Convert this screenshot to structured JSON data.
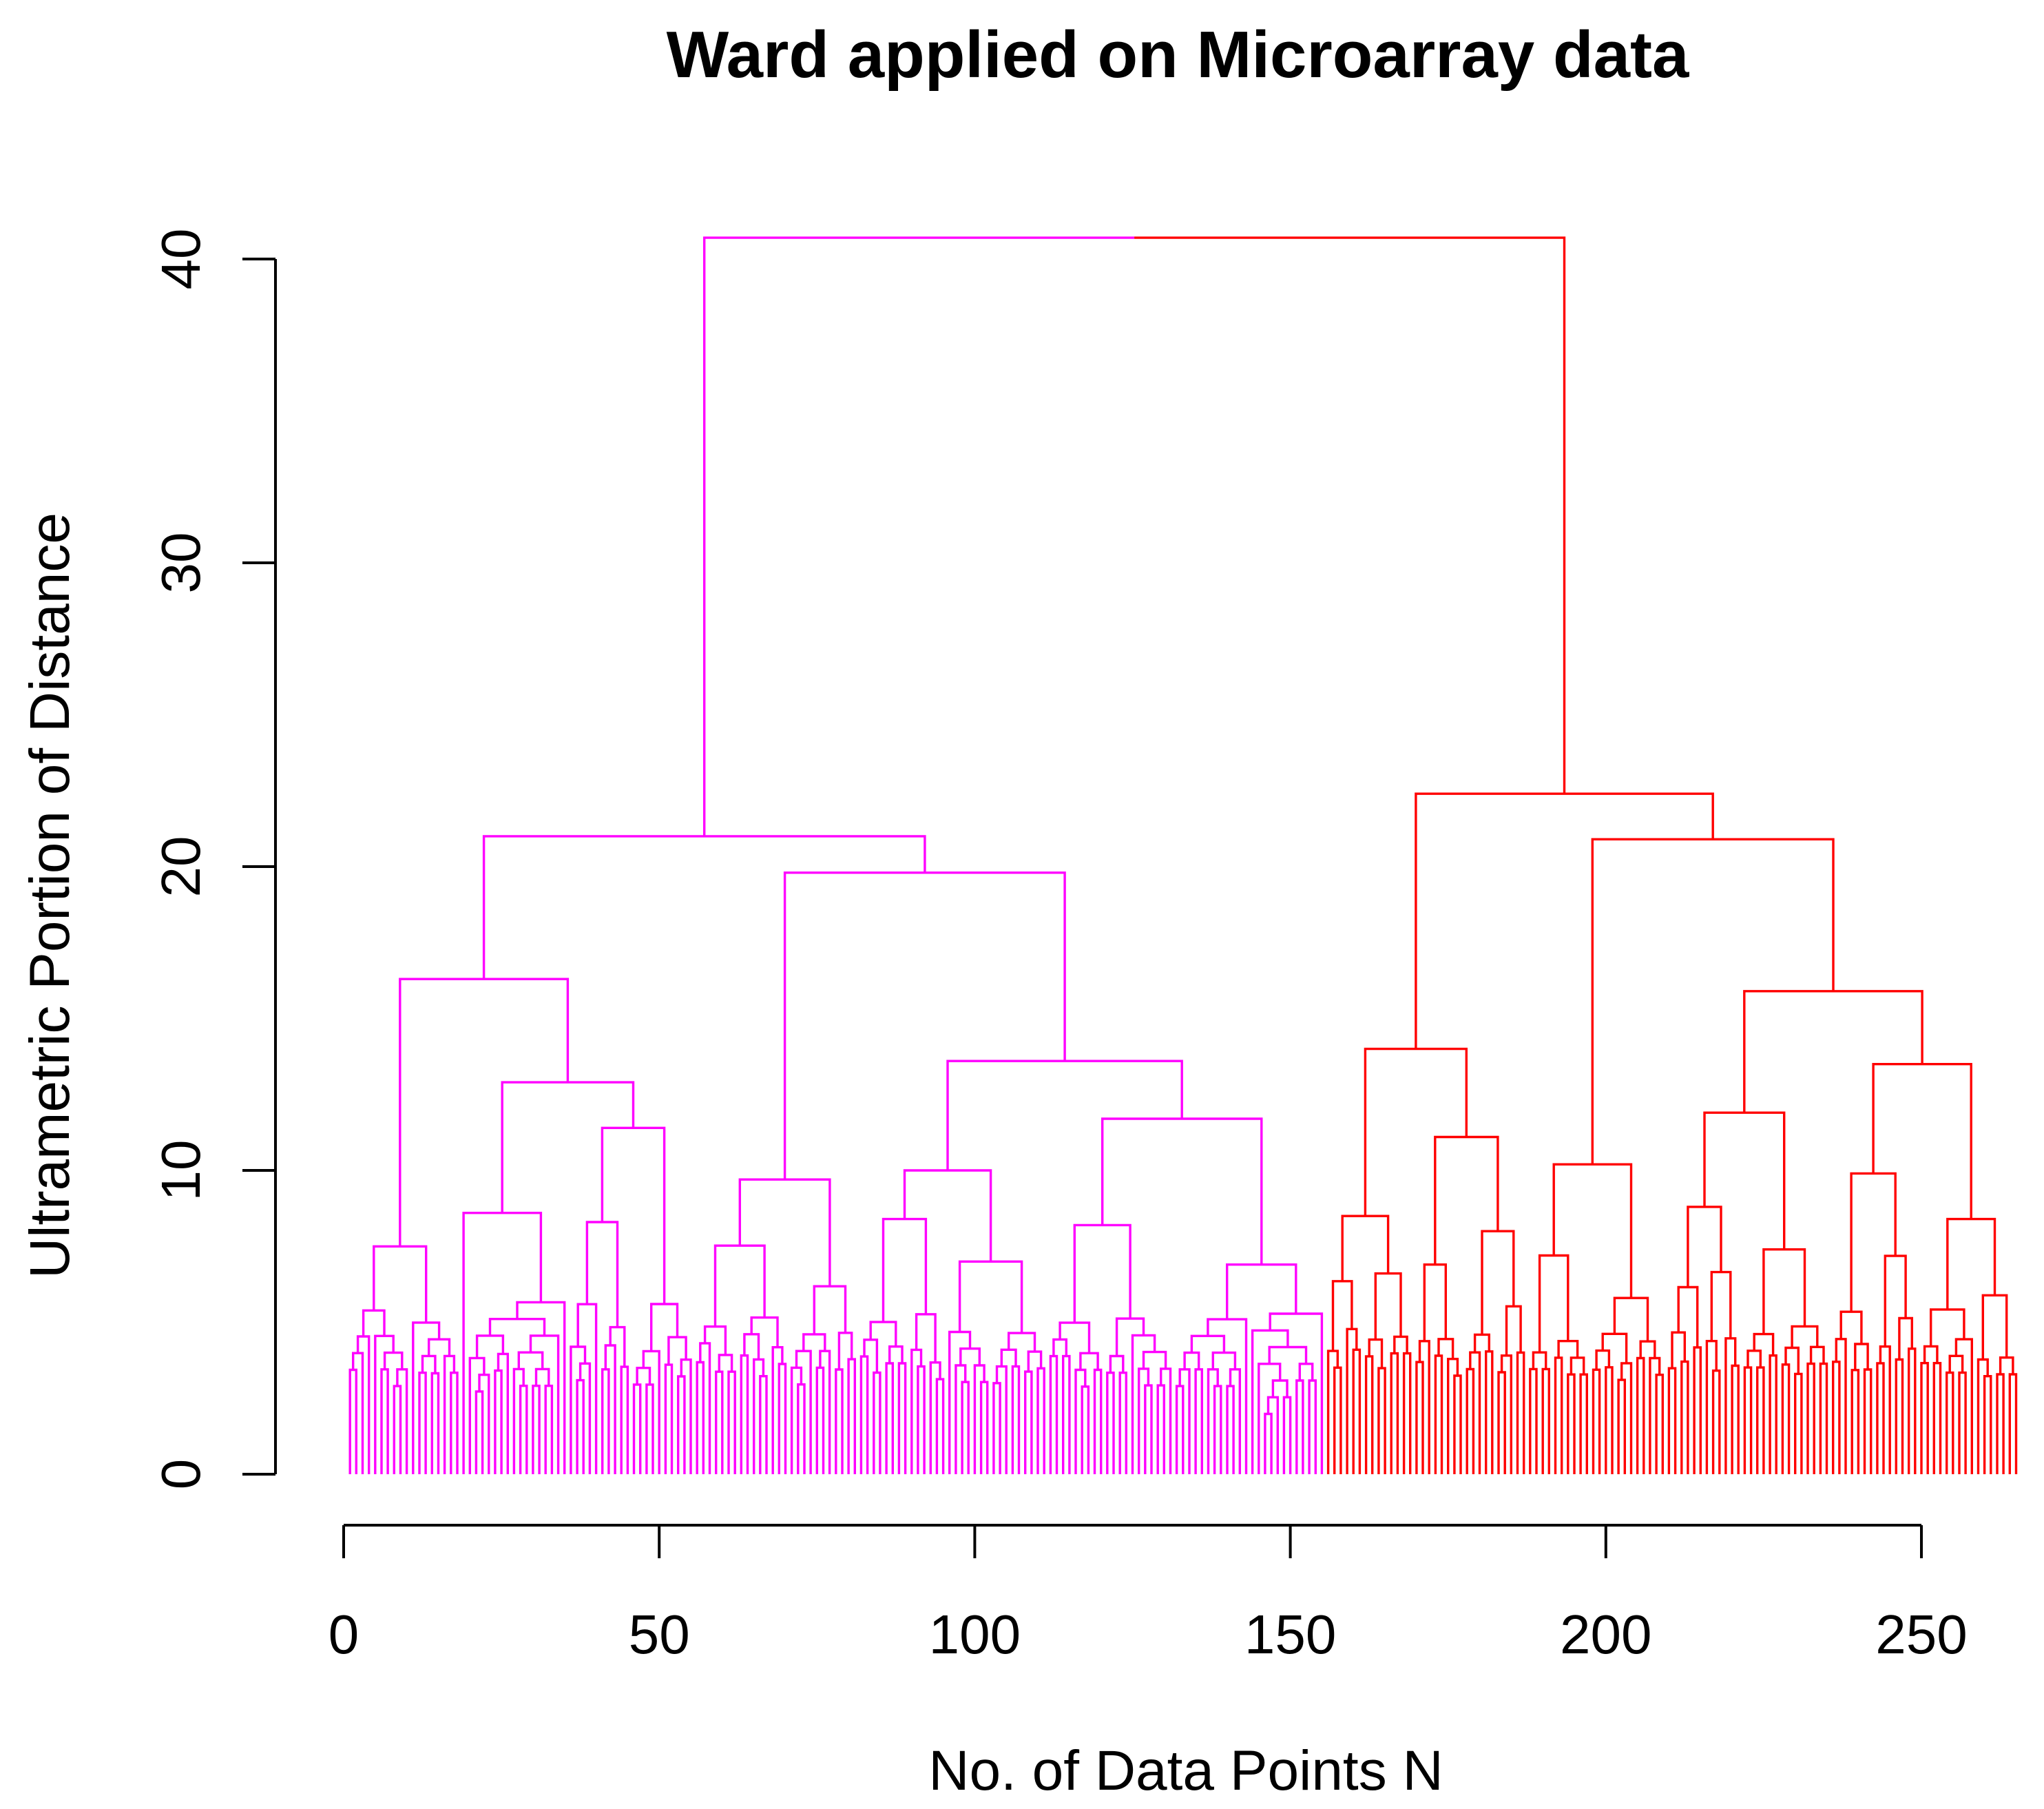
{
  "figure": {
    "background": "#FFFFFF",
    "axis_color": "#000000"
  },
  "chart_data": {
    "type": "dendrogram",
    "title": "Ward applied on Microarray data",
    "xlabel": "No. of Data Points N",
    "ylabel": "Ultrametric Portion of Distance",
    "x_ticks": [
      0,
      50,
      100,
      150,
      200,
      250
    ],
    "y_ticks": [
      0,
      10,
      20,
      30,
      40
    ],
    "xlim": [
      0,
      266
    ],
    "ylim": [
      0,
      40.7
    ],
    "grid": false,
    "legend": "none",
    "n_leaves_total": 265,
    "root_merge_height": 40.7,
    "clusters": [
      {
        "name": "left-cluster",
        "color": "#FF00FF",
        "leaf_count": 155,
        "leaf_range_n": [
          1,
          155
        ],
        "top_merge_height": 21.0
      },
      {
        "name": "right-cluster",
        "color": "#FF0000",
        "leaf_count": 110,
        "leaf_range_n": [
          156,
          265
        ],
        "top_merge_height": 22.4
      }
    ],
    "tree": {
      "height": 40.7,
      "children": [
        {
          "color": "#FF00FF",
          "n": 155,
          "h": 21.0,
          "children": [
            {
              "n": 55,
              "h": 16.3,
              "children": [
                {
                  "n": 18,
                  "h": 7.5
                },
                {
                  "n": 37,
                  "h": 12.9,
                  "children": [
                    {
                      "n": 17,
                      "h": 8.6
                    },
                    {
                      "n": 20,
                      "h": 11.4,
                      "children": [
                        {
                          "n": 10,
                          "h": 8.3
                        },
                        {
                          "n": 10,
                          "h": 5.6
                        }
                      ]
                    }
                  ]
                }
              ]
            },
            {
              "n": 100,
              "h": 19.8,
              "children": [
                {
                  "n": 26,
                  "h": 9.7
                },
                {
                  "n": 74,
                  "h": 13.6,
                  "children": [
                    {
                      "n": 30,
                      "h": 10.0,
                      "children": [
                        {
                          "n": 14,
                          "h": 8.4
                        },
                        {
                          "n": 16,
                          "h": 7.0
                        }
                      ]
                    },
                    {
                      "n": 44,
                      "h": 11.7,
                      "children": [
                        {
                          "n": 20,
                          "h": 8.2
                        },
                        {
                          "n": 24,
                          "h": 6.9
                        }
                      ]
                    }
                  ]
                }
              ]
            }
          ]
        },
        {
          "color": "#FF0000",
          "n": 110,
          "h": 22.4,
          "children": [
            {
              "n": 32,
              "h": 14.0,
              "children": [
                {
                  "n": 14,
                  "h": 8.5
                },
                {
                  "n": 18,
                  "h": 11.1,
                  "children": [
                    {
                      "n": 8,
                      "h": 6.9
                    },
                    {
                      "n": 10,
                      "h": 8.0
                    }
                  ]
                }
              ]
            },
            {
              "n": 78,
              "h": 20.9,
              "children": [
                {
                  "n": 22,
                  "h": 10.2,
                  "children": [
                    {
                      "n": 10,
                      "h": 7.2
                    },
                    {
                      "n": 12,
                      "h": 5.8
                    }
                  ]
                },
                {
                  "n": 56,
                  "h": 15.9,
                  "children": [
                    {
                      "n": 26,
                      "h": 11.9,
                      "children": [
                        {
                          "n": 12,
                          "h": 8.8
                        },
                        {
                          "n": 14,
                          "h": 7.4
                        }
                      ]
                    },
                    {
                      "n": 30,
                      "h": 13.5,
                      "children": [
                        {
                          "n": 14,
                          "h": 9.9
                        },
                        {
                          "n": 16,
                          "h": 8.4
                        }
                      ]
                    }
                  ]
                }
              ]
            }
          ]
        }
      ]
    }
  }
}
